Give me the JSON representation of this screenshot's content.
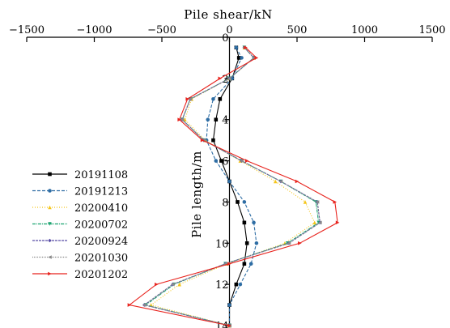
{
  "chart_data": {
    "type": "line",
    "x_axis": {
      "label": "Pile shear/kN",
      "position": "top",
      "lim": [
        -1500,
        1500
      ],
      "ticks": [
        -1500,
        -1000,
        -500,
        0,
        500,
        1000,
        1500
      ],
      "tick_labels": [
        "−1500",
        "−1000",
        "−500",
        "0",
        "500",
        "1000",
        "1500"
      ]
    },
    "y_axis": {
      "label": "Pile length/m",
      "lim": [
        0,
        14
      ],
      "inverted": true,
      "ticks": [
        0,
        2,
        4,
        6,
        8,
        10,
        12,
        14
      ],
      "tick_labels": [
        "0",
        "2",
        "4",
        "6",
        "8",
        "10",
        "12",
        "14"
      ]
    },
    "grid": false,
    "legend_position": "left",
    "series": [
      {
        "name": "20191108",
        "color": "#000000",
        "dash": "",
        "marker": "square",
        "points": [
          [
            50,
            0.5
          ],
          [
            70,
            1
          ],
          [
            20,
            2
          ],
          [
            -70,
            3
          ],
          [
            -100,
            4
          ],
          [
            -120,
            5
          ],
          [
            -60,
            6
          ],
          [
            0,
            7
          ],
          [
            60,
            8
          ],
          [
            110,
            9
          ],
          [
            130,
            10
          ],
          [
            110,
            11
          ],
          [
            50,
            12
          ],
          [
            0,
            13
          ],
          [
            0,
            14
          ]
        ]
      },
      {
        "name": "20191213",
        "color": "#2e6da4",
        "dash": "4,2",
        "marker": "circle",
        "points": [
          [
            50,
            0.5
          ],
          [
            90,
            1
          ],
          [
            20,
            2
          ],
          [
            -120,
            3
          ],
          [
            -160,
            4
          ],
          [
            -170,
            5
          ],
          [
            -100,
            6
          ],
          [
            0,
            7
          ],
          [
            110,
            8
          ],
          [
            180,
            9
          ],
          [
            200,
            10
          ],
          [
            160,
            11
          ],
          [
            80,
            12
          ],
          [
            0,
            13
          ],
          [
            0,
            14
          ]
        ]
      },
      {
        "name": "20200410",
        "color": "#f5c518",
        "dash": "1,2",
        "marker": "triangle",
        "points": [
          [
            110,
            0.5
          ],
          [
            180,
            1
          ],
          [
            0,
            2
          ],
          [
            -280,
            3
          ],
          [
            -330,
            4
          ],
          [
            -180,
            5
          ],
          [
            80,
            6
          ],
          [
            340,
            7
          ],
          [
            560,
            8
          ],
          [
            630,
            9
          ],
          [
            410,
            10
          ],
          [
            -20,
            11
          ],
          [
            -370,
            12
          ],
          [
            -580,
            13
          ],
          [
            0,
            14
          ]
        ]
      },
      {
        "name": "20200702",
        "color": "#1aa36f",
        "dash": "4,1,1,1",
        "marker": "triangle-down",
        "points": [
          [
            110,
            0.5
          ],
          [
            180,
            1
          ],
          [
            0,
            2
          ],
          [
            -290,
            3
          ],
          [
            -350,
            4
          ],
          [
            -190,
            5
          ],
          [
            90,
            6
          ],
          [
            380,
            7
          ],
          [
            640,
            8
          ],
          [
            660,
            9
          ],
          [
            430,
            10
          ],
          [
            -30,
            11
          ],
          [
            -410,
            12
          ],
          [
            -620,
            13
          ],
          [
            0,
            14
          ]
        ]
      },
      {
        "name": "20200924",
        "color": "#5b4fa8",
        "dash": "3,1",
        "marker": "diamond",
        "points": [
          [
            110,
            0.5
          ],
          [
            180,
            1
          ],
          [
            0,
            2
          ],
          [
            -290,
            3
          ],
          [
            -350,
            4
          ],
          [
            -190,
            5
          ],
          [
            90,
            6
          ],
          [
            380,
            7
          ],
          [
            650,
            8
          ],
          [
            670,
            9
          ],
          [
            440,
            10
          ],
          [
            -30,
            11
          ],
          [
            -420,
            12
          ],
          [
            -630,
            13
          ],
          [
            0,
            14
          ]
        ]
      },
      {
        "name": "20201030",
        "color": "#8a8a8a",
        "dash": "1,1",
        "marker": "triangle-left",
        "points": [
          [
            110,
            0.5
          ],
          [
            180,
            1
          ],
          [
            0,
            2
          ],
          [
            -290,
            3
          ],
          [
            -350,
            4
          ],
          [
            -190,
            5
          ],
          [
            90,
            6
          ],
          [
            380,
            7
          ],
          [
            650,
            8
          ],
          [
            670,
            9
          ],
          [
            440,
            10
          ],
          [
            -30,
            11
          ],
          [
            -420,
            12
          ],
          [
            -630,
            13
          ],
          [
            0,
            14
          ]
        ]
      },
      {
        "name": "20201202",
        "color": "#e8231d",
        "dash": "",
        "marker": "triangle-right",
        "points": [
          [
            120,
            0.5
          ],
          [
            200,
            1
          ],
          [
            -70,
            2
          ],
          [
            -310,
            3
          ],
          [
            -370,
            4
          ],
          [
            -200,
            5
          ],
          [
            130,
            6
          ],
          [
            500,
            7
          ],
          [
            780,
            8
          ],
          [
            800,
            9
          ],
          [
            520,
            10
          ],
          [
            0,
            11
          ],
          [
            -540,
            12
          ],
          [
            -740,
            13
          ],
          [
            0,
            14
          ]
        ]
      }
    ]
  }
}
